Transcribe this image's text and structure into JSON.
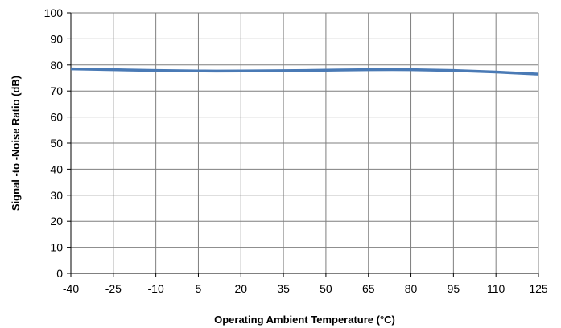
{
  "chart_data": {
    "type": "line",
    "xlabel": "Operating Ambient Temperature (°C)",
    "ylabel": "Signal -to -Noise Ratio (dB)",
    "xlim": [
      -40,
      125
    ],
    "ylim": [
      0,
      100
    ],
    "x_ticks": [
      -40,
      -25,
      -10,
      5,
      20,
      35,
      50,
      65,
      80,
      95,
      110,
      125
    ],
    "y_ticks": [
      0,
      10,
      20,
      30,
      40,
      50,
      60,
      70,
      80,
      90,
      100
    ],
    "grid": true,
    "series": [
      {
        "color": "#4a7ab5",
        "x": [
          -40,
          -25,
          -10,
          5,
          20,
          35,
          50,
          65,
          80,
          95,
          110,
          125
        ],
        "y": [
          78.5,
          78.2,
          77.9,
          77.7,
          77.7,
          77.8,
          78.0,
          78.2,
          78.2,
          77.9,
          77.3,
          76.5
        ]
      }
    ]
  }
}
